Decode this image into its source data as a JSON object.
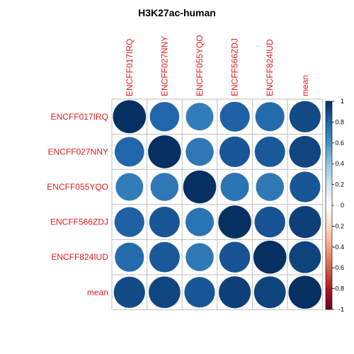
{
  "chart_data": {
    "type": "heatmap",
    "title": "H3K27ac-human",
    "xlabel": "",
    "ylabel": "",
    "labels": [
      "ENCFF017IRQ",
      "ENCFF027NNY",
      "ENCFF055YQO",
      "ENCFF566ZDJ",
      "ENCFF824IUD",
      "mean"
    ],
    "matrix": [
      [
        1.0,
        0.8,
        0.7,
        0.82,
        0.78,
        0.9
      ],
      [
        0.8,
        1.0,
        0.72,
        0.86,
        0.85,
        0.92
      ],
      [
        0.7,
        0.72,
        1.0,
        0.74,
        0.72,
        0.86
      ],
      [
        0.82,
        0.86,
        0.74,
        1.0,
        0.87,
        0.94
      ],
      [
        0.78,
        0.85,
        0.72,
        0.87,
        1.0,
        0.93
      ],
      [
        0.9,
        0.92,
        0.86,
        0.94,
        0.93,
        1.0
      ]
    ],
    "colorbar": {
      "range": [
        -1,
        1
      ],
      "ticks": [
        "1",
        "0.8",
        "0.6",
        "0.4",
        "0.2",
        "0",
        "-0.2",
        "-0.4",
        "-0.6",
        "-0.8",
        "-1"
      ],
      "colors": {
        "negative": "#67001f",
        "zero": "#ffffff",
        "positive": "#053061"
      }
    },
    "grid": true,
    "label_color": "#e41a1c"
  }
}
